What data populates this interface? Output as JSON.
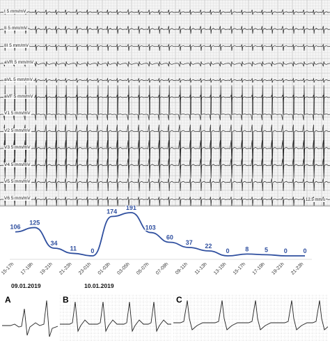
{
  "ecg": {
    "leads": [
      {
        "name": "I",
        "label": "I  5 mm/mV"
      },
      {
        "name": "II",
        "label": "II  5 mm/mV"
      },
      {
        "name": "III",
        "label": "III  5 mm/mV"
      },
      {
        "name": "aVR",
        "label": "aVR  5 mm/mV"
      },
      {
        "name": "aVL",
        "label": "aVL  5 mm/mV"
      },
      {
        "name": "aVF",
        "label": "aVF  5 mm/mV"
      },
      {
        "name": "V1",
        "label": "V1  5 mm/mV"
      },
      {
        "name": "V2",
        "label": "V2  5 mm/mV"
      },
      {
        "name": "V3",
        "label": "V3  5 mm/mV"
      },
      {
        "name": "V4",
        "label": "V4  5 mm/mV"
      },
      {
        "name": "V5",
        "label": "V5  5 mm/mV"
      },
      {
        "name": "V6",
        "label": "V6  5 mm/mV"
      }
    ],
    "speed_label": "12.5 mm/s"
  },
  "trend": {
    "categories": [
      "15-17h",
      "17-19h",
      "19-21h",
      "21-23h",
      "23-01h",
      "01-03h",
      "03-05h",
      "05-07h",
      "07-09h",
      "09-11h",
      "11-13h",
      "13-15h",
      "15-17h",
      "17-19h",
      "19-21h",
      "21-23h"
    ],
    "values": [
      106,
      125,
      34,
      11,
      0,
      174,
      191,
      103,
      60,
      37,
      22,
      0,
      8,
      5,
      0,
      0
    ],
    "line_color": "#2f4f9f",
    "dates": [
      "09.01.2019",
      "10.01.2019"
    ]
  },
  "panels": [
    {
      "letter": "A"
    },
    {
      "letter": "B"
    },
    {
      "letter": "C"
    }
  ]
}
